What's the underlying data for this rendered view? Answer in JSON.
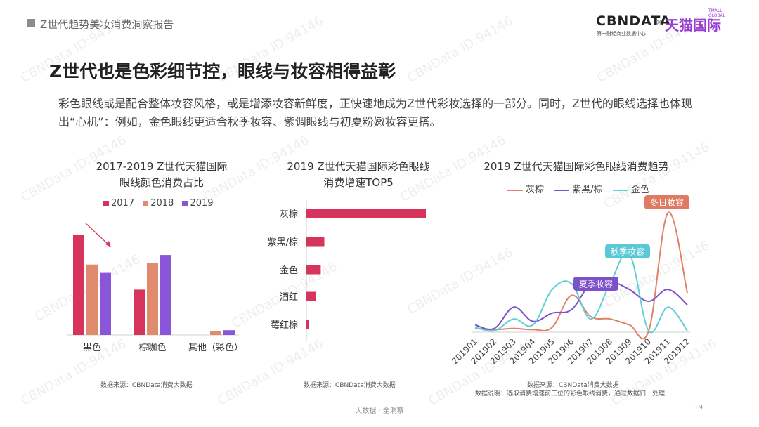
{
  "header": {
    "report_title": "Z世代趋势美妆消费洞察报告"
  },
  "logo": {
    "cbn": "CBNDATA",
    "cbn_sub": "第一财经商业数据中心",
    "x": "×",
    "tmall": "天猫国际",
    "tmall_small": "TMALL GLOBAL"
  },
  "headline": "Z世代也是色彩细节控，眼线与妆容相得益彰",
  "description": "彩色眼线或是配合整体妆容风格，或是增添妆容新鲜度，正快速地成为Z世代彩妆选择的一部分。同时，Z世代的眼线选择也体现出“心机”：例如，金色眼线更适合秋季妆容、紫调眼线与初夏粉嫩妆容更搭。",
  "watermark": "CBNData ID:94146",
  "colors": {
    "c2017": "#d6345c",
    "c2018": "#e08a6e",
    "c2019": "#8a55d8",
    "gray_brown": "#e0826a",
    "purple_black": "#7b52c8",
    "gold": "#5fcfd6",
    "tag_winter": "#e07b63",
    "tag_autumn": "#5bc8d6",
    "tag_summer": "#7b52c8"
  },
  "chart_data": [
    {
      "type": "bar",
      "title_line1": "2017-2019 Z世代天猫国际",
      "title_line2": "眼线颜色消费占比",
      "categories": [
        "黑色",
        "棕咖色",
        "其他（彩色）"
      ],
      "series": [
        {
          "name": "2017",
          "values": [
            0.84,
            0.38,
            0.0
          ]
        },
        {
          "name": "2018",
          "values": [
            0.59,
            0.6,
            0.03
          ]
        },
        {
          "name": "2019",
          "values": [
            0.52,
            0.67,
            0.04
          ]
        }
      ],
      "ylim": [
        0,
        1
      ],
      "source": "数据来源：CBNData消费大数据"
    },
    {
      "type": "bar",
      "orientation": "horizontal",
      "title_line1": "2019 Z世代天猫国际彩色眼线",
      "title_line2": "消费增速TOP5",
      "categories": [
        "灰棕",
        "紫黑/棕",
        "金色",
        "酒红",
        "莓红棕"
      ],
      "values": [
        100,
        15,
        12,
        8,
        2
      ],
      "xlim": [
        0,
        100
      ],
      "source": "数据来源：CBNData消费大数据"
    },
    {
      "type": "line",
      "title": "2019 Z世代天猫国际彩色眼线消费趋势",
      "x": [
        "201901",
        "201902",
        "201903",
        "201904",
        "201905",
        "201906",
        "201907",
        "201908",
        "201909",
        "201910",
        "201911",
        "201912"
      ],
      "series": [
        {
          "name": "灰棕",
          "values": [
            2,
            1,
            2,
            1,
            3,
            30,
            12,
            10,
            5,
            0,
            100,
            32
          ]
        },
        {
          "name": "紫黑/棕",
          "values": [
            5,
            2,
            20,
            8,
            15,
            18,
            40,
            42,
            35,
            25,
            35,
            22
          ]
        },
        {
          "name": "金色",
          "values": [
            3,
            0,
            10,
            5,
            35,
            40,
            10,
            40,
            65,
            0,
            20,
            0
          ]
        }
      ],
      "ylim": [
        0,
        100
      ],
      "annotations": [
        "冬日妆容",
        "秋季妆容",
        "夏季妆容"
      ],
      "source_line1": "数据来源：CBNData消费大数据",
      "source_line2": "数据说明：选取消费增速前三位的彩色眼线消费，通过数据归一处理"
    }
  ],
  "footer": {
    "text": "大数据 · 全洞察",
    "page": "19"
  }
}
